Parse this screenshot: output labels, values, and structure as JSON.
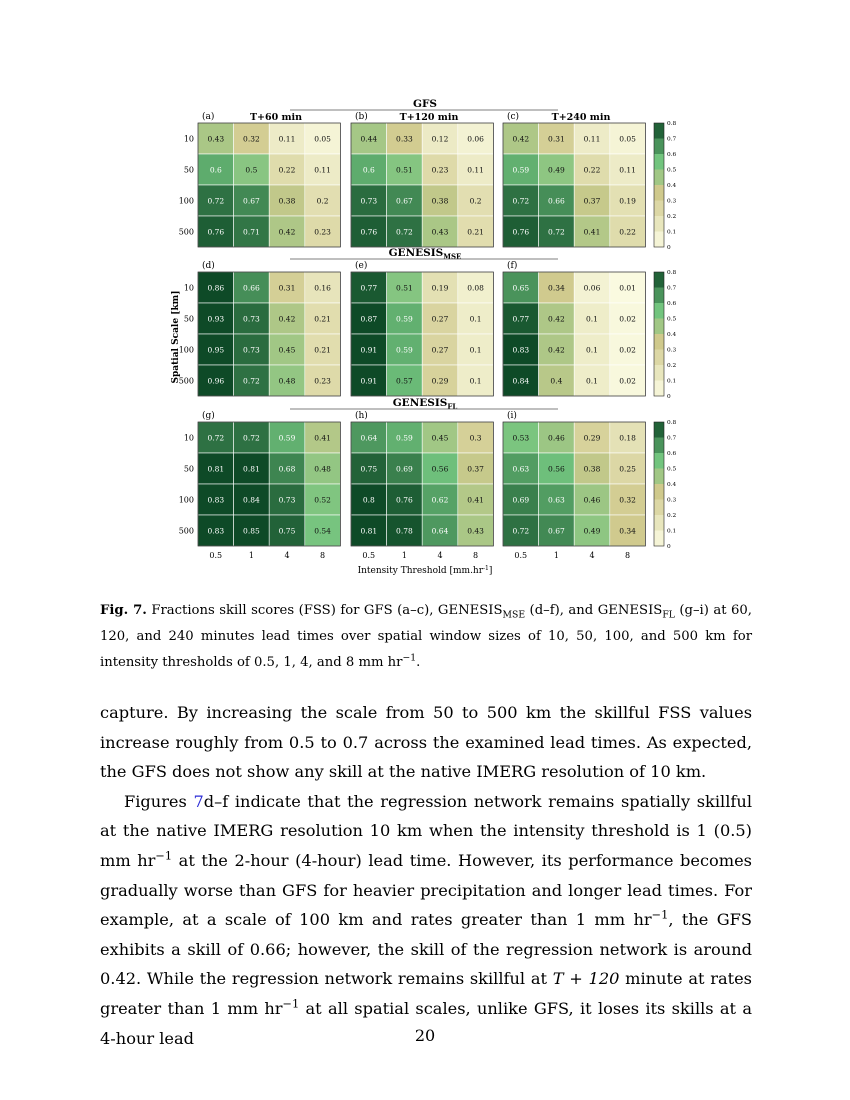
{
  "chart_data": {
    "type": "heatmap",
    "xlabel": "Intensity Threshold [mm.hr",
    "xlabel_sup": "-1",
    "xlabel_end": "]",
    "ylabel": "Spatial Scale [km]",
    "x_ticks": [
      "0.5",
      "1",
      "4",
      "8"
    ],
    "y_ticks": [
      "10",
      "50",
      "100",
      "500"
    ],
    "colorbar_ticks": [
      "0.8",
      "0.7",
      "0.6",
      "0.5",
      "0.4",
      "0.3",
      "0.2",
      "0.1",
      "0"
    ],
    "color_range": [
      0,
      0.8
    ],
    "colors": {
      "low": "#fbfbe2",
      "mid": "#cfc98c",
      "green": "#72c47e",
      "high": "#0e4a27"
    },
    "col_titles": [
      "T+60 min",
      "T+120 min",
      "T+240 min"
    ],
    "groups": [
      {
        "title": "GFS",
        "title_sub": "",
        "panels": [
          {
            "label": "(a)",
            "values": [
              [
                0.43,
                0.32,
                0.11,
                0.05
              ],
              [
                0.6,
                0.5,
                0.22,
                0.11
              ],
              [
                0.72,
                0.67,
                0.38,
                0.2
              ],
              [
                0.76,
                0.71,
                0.42,
                0.23
              ]
            ]
          },
          {
            "label": "(b)",
            "values": [
              [
                0.44,
                0.33,
                0.12,
                0.06
              ],
              [
                0.6,
                0.51,
                0.23,
                0.11
              ],
              [
                0.73,
                0.67,
                0.38,
                0.2
              ],
              [
                0.76,
                0.72,
                0.43,
                0.21
              ]
            ]
          },
          {
            "label": "(c)",
            "values": [
              [
                0.42,
                0.31,
                0.11,
                0.05
              ],
              [
                0.59,
                0.49,
                0.22,
                0.11
              ],
              [
                0.72,
                0.66,
                0.37,
                0.19
              ],
              [
                0.76,
                0.72,
                0.41,
                0.22
              ]
            ]
          }
        ]
      },
      {
        "title": "GENESIS",
        "title_sub": "MSE",
        "panels": [
          {
            "label": "(d)",
            "values": [
              [
                0.86,
                0.66,
                0.31,
                0.16
              ],
              [
                0.93,
                0.73,
                0.42,
                0.21
              ],
              [
                0.95,
                0.73,
                0.45,
                0.21
              ],
              [
                0.96,
                0.72,
                0.48,
                0.23
              ]
            ]
          },
          {
            "label": "(e)",
            "values": [
              [
                0.77,
                0.51,
                0.19,
                0.08
              ],
              [
                0.87,
                0.59,
                0.27,
                0.1
              ],
              [
                0.91,
                0.59,
                0.27,
                0.1
              ],
              [
                0.91,
                0.57,
                0.29,
                0.1
              ]
            ]
          },
          {
            "label": "(f)",
            "values": [
              [
                0.65,
                0.34,
                0.06,
                0.01
              ],
              [
                0.77,
                0.42,
                0.1,
                0.02
              ],
              [
                0.83,
                0.42,
                0.1,
                0.02
              ],
              [
                0.84,
                0.4,
                0.1,
                0.02
              ]
            ]
          }
        ]
      },
      {
        "title": "GENESIS",
        "title_sub": "FL",
        "panels": [
          {
            "label": "(g)",
            "values": [
              [
                0.72,
                0.72,
                0.59,
                0.41
              ],
              [
                0.81,
                0.81,
                0.68,
                0.48
              ],
              [
                0.83,
                0.84,
                0.73,
                0.52
              ],
              [
                0.83,
                0.85,
                0.75,
                0.54
              ]
            ]
          },
          {
            "label": "(h)",
            "values": [
              [
                0.64,
                0.59,
                0.45,
                0.3
              ],
              [
                0.75,
                0.69,
                0.56,
                0.37
              ],
              [
                0.8,
                0.76,
                0.62,
                0.41
              ],
              [
                0.81,
                0.78,
                0.64,
                0.43
              ]
            ]
          },
          {
            "label": "(i)",
            "values": [
              [
                0.53,
                0.46,
                0.29,
                0.18
              ],
              [
                0.63,
                0.56,
                0.38,
                0.25
              ],
              [
                0.69,
                0.63,
                0.46,
                0.32
              ],
              [
                0.72,
                0.67,
                0.49,
                0.34
              ]
            ]
          }
        ]
      }
    ]
  },
  "caption": {
    "label": "Fig. 7.",
    "t1": " Fractions skill scores (FSS) for GFS (a–c), GENESIS",
    "sub1": "MSE",
    "t2": " (d–f), and GENESIS",
    "sub2": "FL",
    "t3": " (g–i) at 60, 120, and 240 minutes lead times over spatial window sizes of 10, 50, 100, and 500 km for intensity thresholds of 0.5, 1, 4, and 8 mm hr",
    "sup": "−1",
    "t4": "."
  },
  "body": {
    "p1": "capture. By increasing the scale from 50 to 500 km the skillful FSS values increase roughly from 0.5 to 0.7 across the examined lead times. As expected, the GFS does not show any skill at the native IMERG resolution of 10 km.",
    "p2_a": "Figures ",
    "p2_ref": "7",
    "p2_b": "d–f indicate that the regression network remains spatially skillful at the native IMERG resolution 10 km when the intensity threshold is 1 (0.5) mm hr",
    "p2_sup1": "−1",
    "p2_c": " at the 2-hour (4-hour) lead time. However, its performance becomes gradually worse than GFS for heavier precipitation and longer lead times. For example, at a scale of 100 km and rates greater than 1 mm hr",
    "p2_sup2": "−1",
    "p2_d": ", the GFS exhibits a skill of 0.66; however, the skill of the regression network is around 0.42. While the regression network remains skillful at ",
    "p2_math": "T + 120",
    "p2_e": " minute at rates greater than 1 mm hr",
    "p2_sup3": "−1",
    "p2_f": " at all spatial scales, unlike GFS, it loses its skills at a 4-hour lead"
  },
  "page_number": "20"
}
